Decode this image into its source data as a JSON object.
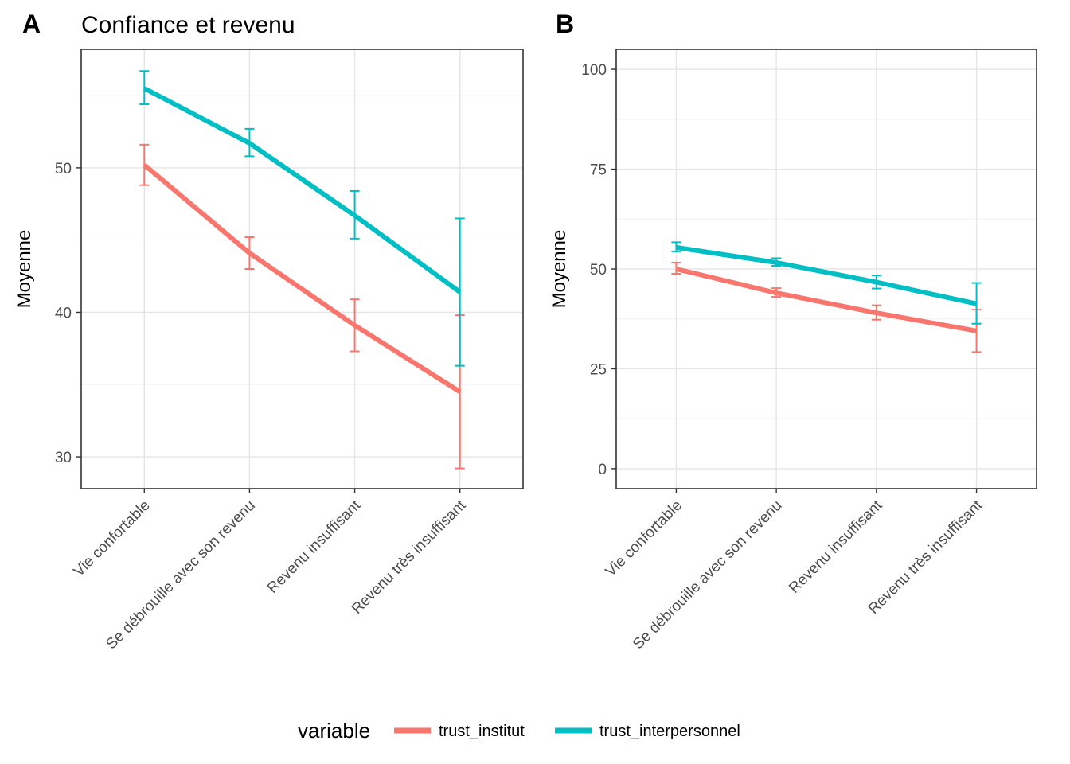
{
  "chart_data": [
    {
      "panel": "A",
      "type": "line",
      "title": "Confiance et revenu",
      "xlabel": "",
      "ylabel": "Moyenne",
      "categories": [
        "Vie confortable",
        "Se débrouille avec son revenu",
        "Revenu insuffisant",
        "Revenu très insuffisant"
      ],
      "ylim": [
        27.8,
        58.2
      ],
      "yticks": [
        30,
        40,
        50
      ],
      "grid": true,
      "series": [
        {
          "name": "trust_institut",
          "color": "#F8766D",
          "values": [
            50.2,
            44.1,
            39.1,
            34.5
          ],
          "lower": [
            48.8,
            43.0,
            37.3,
            29.2
          ],
          "upper": [
            51.6,
            45.2,
            40.9,
            39.8
          ]
        },
        {
          "name": "trust_interpersonnel",
          "color": "#00BFC4",
          "values": [
            55.5,
            51.7,
            46.7,
            41.4
          ],
          "lower": [
            54.4,
            50.8,
            45.1,
            36.3
          ],
          "upper": [
            56.7,
            52.7,
            48.4,
            46.5
          ]
        }
      ]
    },
    {
      "panel": "B",
      "type": "line",
      "title": "",
      "xlabel": "",
      "ylabel": "Moyenne",
      "categories": [
        "Vie confortable",
        "Se débrouille avec son revenu",
        "Revenu insuffisant",
        "Revenu très insuffisant"
      ],
      "ylim": [
        -5,
        105
      ],
      "yticks": [
        0,
        25,
        50,
        75,
        100
      ],
      "grid": true,
      "series": [
        {
          "name": "trust_institut",
          "color": "#F8766D",
          "values": [
            50.0,
            44.0,
            39.0,
            34.5
          ],
          "lower": [
            48.8,
            43.0,
            37.3,
            29.2
          ],
          "upper": [
            51.6,
            45.2,
            40.9,
            39.8
          ]
        },
        {
          "name": "trust_interpersonnel",
          "color": "#00BFC4",
          "values": [
            55.4,
            51.6,
            46.7,
            41.3
          ],
          "lower": [
            54.4,
            50.8,
            45.1,
            36.3
          ],
          "upper": [
            56.7,
            52.7,
            48.4,
            46.5
          ]
        }
      ]
    }
  ],
  "legend": {
    "title": "variable",
    "position": "bottom",
    "items": [
      {
        "label": "trust_institut",
        "color": "#F8766D"
      },
      {
        "label": "trust_interpersonnel",
        "color": "#00BFC4"
      }
    ]
  }
}
